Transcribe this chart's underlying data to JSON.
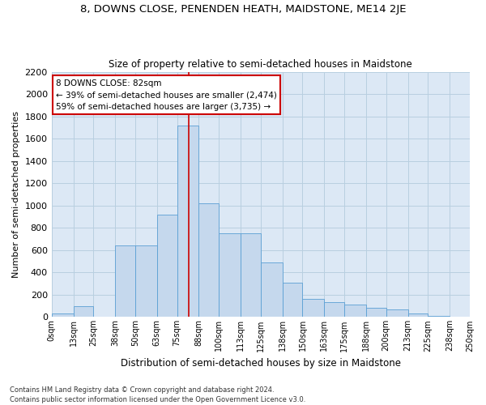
{
  "title": "8, DOWNS CLOSE, PENENDEN HEATH, MAIDSTONE, ME14 2JE",
  "subtitle": "Size of property relative to semi-detached houses in Maidstone",
  "xlabel": "Distribution of semi-detached houses by size in Maidstone",
  "ylabel": "Number of semi-detached properties",
  "footer1": "Contains HM Land Registry data © Crown copyright and database right 2024.",
  "footer2": "Contains public sector information licensed under the Open Government Licence v3.0.",
  "annotation_title": "8 DOWNS CLOSE: 82sqm",
  "annotation_line1": "← 39% of semi-detached houses are smaller (2,474)",
  "annotation_line2": "59% of semi-detached houses are larger (3,735) →",
  "property_size": 82,
  "bar_color": "#c5d8ed",
  "bar_edge_color": "#5a9fd4",
  "line_color": "#cc0000",
  "annotation_box_color": "#cc0000",
  "grid_color": "#b8cfe0",
  "bg_color": "#dce8f5",
  "categories": [
    "0sqm",
    "13sqm",
    "25sqm",
    "38sqm",
    "50sqm",
    "63sqm",
    "75sqm",
    "88sqm",
    "100sqm",
    "113sqm",
    "125sqm",
    "138sqm",
    "150sqm",
    "163sqm",
    "175sqm",
    "188sqm",
    "200sqm",
    "213sqm",
    "225sqm",
    "238sqm",
    "250sqm"
  ],
  "bin_edges": [
    0,
    13,
    25,
    38,
    50,
    63,
    75,
    88,
    100,
    113,
    125,
    138,
    150,
    163,
    175,
    188,
    200,
    213,
    225,
    238,
    250
  ],
  "values": [
    30,
    100,
    0,
    640,
    640,
    920,
    1720,
    1020,
    750,
    750,
    490,
    310,
    160,
    135,
    115,
    80,
    70,
    35,
    10,
    5
  ],
  "ylim": [
    0,
    2200
  ],
  "yticks": [
    0,
    200,
    400,
    600,
    800,
    1000,
    1200,
    1400,
    1600,
    1800,
    2000,
    2200
  ]
}
